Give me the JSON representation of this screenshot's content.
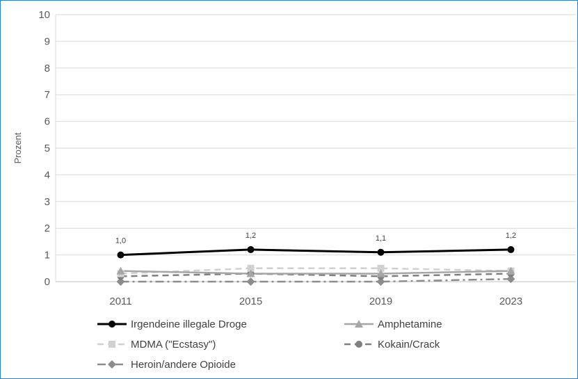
{
  "chart_data": {
    "type": "line",
    "ylabel": "Prozent",
    "ylim": [
      0,
      10
    ],
    "yticks": [
      "0",
      "1",
      "2",
      "3",
      "4",
      "5",
      "6",
      "7",
      "8",
      "9",
      "10"
    ],
    "categories": [
      "2011",
      "2015",
      "2019",
      "2023"
    ],
    "grid": true,
    "legend_position": "bottom",
    "series": [
      {
        "name": "Irgendeine illegale Droge",
        "values": [
          1.0,
          1.2,
          1.1,
          1.2
        ],
        "data_labels": [
          "1,0",
          "1,2",
          "1,1",
          "1,2"
        ],
        "color": "#000000",
        "marker": "circle",
        "dash": "solid"
      },
      {
        "name": "Amphetamine",
        "values": [
          0.4,
          0.3,
          0.3,
          0.4
        ],
        "color": "#a6a6a6",
        "marker": "triangle",
        "dash": "solid"
      },
      {
        "name": "MDMA (\"Ecstasy\")",
        "values": [
          0.3,
          0.5,
          0.5,
          0.4
        ],
        "color": "#d0d0d0",
        "marker": "square",
        "dash": "dash"
      },
      {
        "name": "Kokain/Crack",
        "values": [
          0.2,
          0.3,
          0.2,
          0.3
        ],
        "color": "#7f7f7f",
        "marker": "circle",
        "dash": "dash"
      },
      {
        "name": "Heroin/andere Opioide",
        "values": [
          0.0,
          0.0,
          0.0,
          0.1
        ],
        "color": "#8c8c8c",
        "marker": "diamond",
        "dash": "dashdot"
      }
    ]
  }
}
